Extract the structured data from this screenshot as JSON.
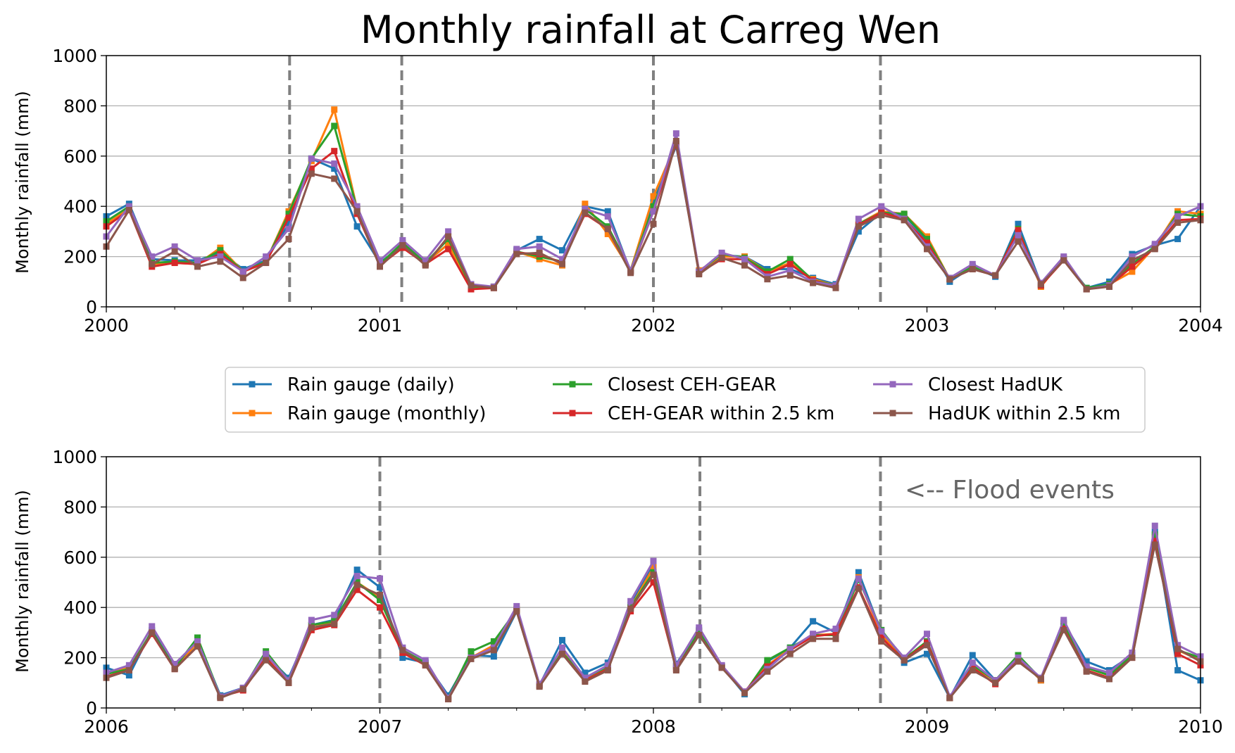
{
  "figure": {
    "title": "Monthly rainfall at Carreg Wen",
    "annotation": "<-- Flood events",
    "legend": {
      "placement": "between panels, three columns",
      "order": [
        0,
        1,
        2,
        3,
        4,
        5
      ]
    }
  },
  "chart_data": [
    {
      "type": "line",
      "panel": "top",
      "xlabel": "",
      "ylabel": "Monthly rainfall (mm)",
      "xlim": [
        2000,
        2004
      ],
      "ylim": [
        0,
        1000
      ],
      "x_ticks": [
        "2000",
        "2001",
        "2002",
        "2003",
        "2004"
      ],
      "y_ticks": [
        "0",
        "200",
        "400",
        "600",
        "800",
        "1000"
      ],
      "grid": "horizontal",
      "flood_events": [
        2000.67,
        2001.08,
        2002.0,
        2002.83
      ],
      "x_start": 2000.0,
      "x_step": "1 month",
      "series": [
        {
          "name": "Rain gauge (daily)",
          "color": "#1f77b4",
          "values": [
            360,
            410,
            190,
            185,
            185,
            215,
            150,
            185,
            330,
            590,
            550,
            320,
            175,
            245,
            175,
            250,
            80,
            80,
            225,
            270,
            225,
            400,
            380,
            140,
            420,
            640,
            140,
            205,
            200,
            150,
            150,
            115,
            90,
            300,
            375,
            365,
            265,
            100,
            160,
            120,
            330,
            90,
            190,
            75,
            100,
            210,
            245,
            270,
            400
          ]
        },
        {
          "name": "Rain gauge (monthly)",
          "color": "#ff7f0e",
          "values": [
            330,
            390,
            170,
            175,
            170,
            235,
            140,
            180,
            380,
            580,
            785,
            390,
            165,
            245,
            175,
            250,
            75,
            80,
            220,
            190,
            165,
            410,
            290,
            145,
            440,
            650,
            145,
            200,
            200,
            140,
            175,
            110,
            85,
            330,
            380,
            370,
            280,
            110,
            155,
            125,
            300,
            80,
            195,
            70,
            90,
            140,
            240,
            380,
            370
          ]
        },
        {
          "name": "Closest CEH-GEAR",
          "color": "#2ca02c",
          "values": [
            340,
            400,
            175,
            180,
            175,
            225,
            140,
            180,
            370,
            590,
            720,
            390,
            170,
            255,
            175,
            270,
            80,
            80,
            220,
            200,
            180,
            390,
            320,
            145,
            400,
            650,
            140,
            210,
            195,
            140,
            190,
            105,
            85,
            330,
            375,
            370,
            270,
            110,
            160,
            125,
            310,
            85,
            190,
            75,
            90,
            170,
            240,
            370,
            360
          ]
        },
        {
          "name": "CEH-GEAR within 2.5 km",
          "color": "#d62728",
          "values": [
            320,
            385,
            160,
            175,
            170,
            210,
            140,
            175,
            355,
            550,
            620,
            370,
            165,
            235,
            170,
            230,
            70,
            75,
            215,
            210,
            175,
            370,
            310,
            140,
            380,
            650,
            135,
            190,
            190,
            130,
            170,
            105,
            80,
            325,
            375,
            350,
            255,
            110,
            150,
            125,
            305,
            85,
            185,
            70,
            85,
            160,
            235,
            345,
            350
          ]
        },
        {
          "name": "Closest HadUK",
          "color": "#9467bd",
          "values": [
            280,
            400,
            200,
            240,
            185,
            200,
            140,
            200,
            310,
            590,
            570,
            400,
            185,
            265,
            185,
            300,
            90,
            80,
            230,
            240,
            190,
            390,
            360,
            145,
            380,
            690,
            140,
            215,
            190,
            120,
            145,
            100,
            85,
            350,
            400,
            350,
            240,
            115,
            170,
            125,
            285,
            95,
            200,
            70,
            85,
            200,
            250,
            360,
            400
          ]
        },
        {
          "name": "HadUK within 2.5 km",
          "color": "#8c564b",
          "values": [
            240,
            385,
            170,
            220,
            160,
            180,
            115,
            175,
            270,
            530,
            510,
            380,
            160,
            245,
            165,
            280,
            85,
            75,
            210,
            215,
            170,
            375,
            310,
            135,
            330,
            660,
            130,
            195,
            165,
            110,
            125,
            95,
            75,
            320,
            365,
            345,
            230,
            110,
            150,
            125,
            260,
            90,
            185,
            70,
            80,
            185,
            230,
            335,
            345
          ]
        }
      ]
    },
    {
      "type": "line",
      "panel": "bottom",
      "xlabel": "",
      "ylabel": "Monthly rainfall (mm)",
      "xlim": [
        2006,
        2010
      ],
      "ylim": [
        0,
        1000
      ],
      "x_ticks": [
        "2006",
        "2007",
        "2008",
        "2009",
        "2010"
      ],
      "y_ticks": [
        "0",
        "200",
        "400",
        "600",
        "800",
        "1000"
      ],
      "grid": "horizontal",
      "flood_events": [
        2007.0,
        2008.17,
        2008.83
      ],
      "x_start": 2006.0,
      "x_step": "1 month",
      "series": [
        {
          "name": "Rain gauge (daily)",
          "color": "#1f77b4",
          "values": [
            160,
            130,
            310,
            160,
            270,
            50,
            80,
            210,
            120,
            330,
            350,
            550,
            480,
            200,
            180,
            50,
            210,
            205,
            385,
            90,
            270,
            140,
            180,
            410,
            570,
            175,
            310,
            165,
            55,
            185,
            240,
            345,
            300,
            540,
            300,
            180,
            215,
            40,
            210,
            110,
            200,
            110,
            340,
            185,
            150,
            210,
            700,
            150,
            110
          ]
        },
        {
          "name": "Rain gauge (monthly)",
          "color": "#ff7f0e",
          "values": [
            140,
            160,
            300,
            160,
            260,
            45,
            75,
            215,
            110,
            330,
            340,
            500,
            440,
            220,
            175,
            40,
            200,
            250,
            395,
            90,
            230,
            120,
            160,
            400,
            560,
            165,
            305,
            165,
            60,
            170,
            235,
            290,
            295,
            520,
            290,
            195,
            265,
            40,
            160,
            110,
            200,
            110,
            330,
            160,
            130,
            210,
            680,
            230,
            190
          ]
        },
        {
          "name": "Closest CEH-GEAR",
          "color": "#2ca02c",
          "values": [
            135,
            155,
            305,
            160,
            280,
            45,
            75,
            225,
            110,
            330,
            345,
            500,
            430,
            230,
            180,
            40,
            225,
            265,
            390,
            90,
            220,
            120,
            165,
            400,
            540,
            165,
            305,
            165,
            60,
            190,
            240,
            290,
            290,
            510,
            310,
            195,
            265,
            40,
            170,
            110,
            210,
            115,
            335,
            160,
            130,
            210,
            690,
            230,
            200
          ]
        },
        {
          "name": "CEH-GEAR within 2.5 km",
          "color": "#d62728",
          "values": [
            125,
            150,
            295,
            155,
            245,
            45,
            70,
            200,
            100,
            310,
            330,
            470,
            400,
            220,
            170,
            35,
            200,
            240,
            385,
            90,
            215,
            110,
            155,
            385,
            500,
            155,
            290,
            165,
            65,
            165,
            230,
            285,
            295,
            480,
            280,
            190,
            260,
            40,
            160,
            95,
            190,
            115,
            315,
            150,
            120,
            200,
            665,
            215,
            170
          ]
        },
        {
          "name": "Closest HadUK",
          "color": "#9467bd",
          "values": [
            140,
            170,
            325,
            175,
            265,
            45,
            80,
            215,
            110,
            350,
            370,
            525,
            515,
            240,
            190,
            40,
            200,
            240,
            405,
            95,
            240,
            120,
            170,
            425,
            585,
            170,
            320,
            170,
            65,
            155,
            235,
            295,
            315,
            515,
            305,
            200,
            295,
            45,
            180,
            110,
            200,
            120,
            350,
            165,
            140,
            220,
            725,
            250,
            205
          ]
        },
        {
          "name": "HadUK within 2.5 km",
          "color": "#8c564b",
          "values": [
            120,
            150,
            300,
            155,
            245,
            40,
            75,
            190,
            100,
            320,
            335,
            490,
            450,
            230,
            170,
            35,
            195,
            230,
            385,
            85,
            215,
            105,
            150,
            395,
            530,
            150,
            290,
            160,
            60,
            145,
            215,
            275,
            275,
            475,
            265,
            190,
            250,
            40,
            150,
            100,
            185,
            115,
            310,
            145,
            115,
            200,
            650,
            235,
            185
          ]
        }
      ]
    }
  ]
}
